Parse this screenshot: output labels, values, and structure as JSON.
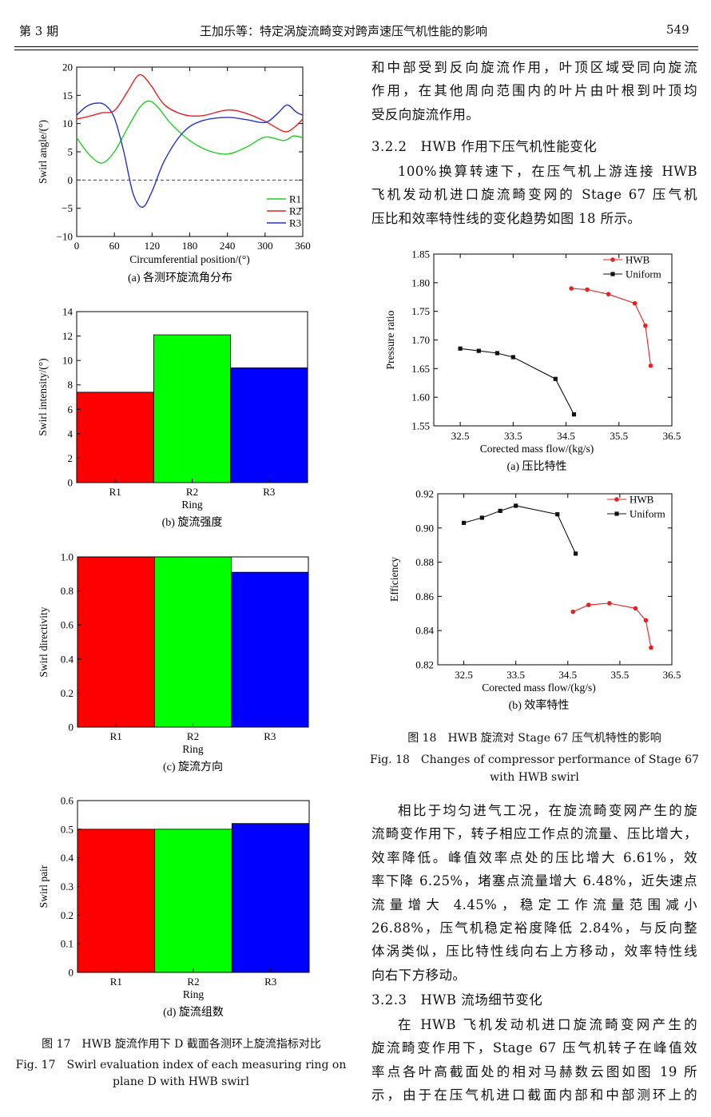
{
  "header": {
    "issue": "第 3 期",
    "title": "王加乐等：特定涡旋流畸变对跨声速压气机性能的影响",
    "page_number": "549"
  },
  "right_column": {
    "para1_lines": [
      "和中部受到反向旋流作用，叶顶区域受同向旋流",
      "作用，在其他周向范围内的叶片由叶根到叶顶均",
      "受反向旋流作用。"
    ],
    "section_322": "3.2.2　HWB 作用下压气机性能变化",
    "para2_lines": [
      "100%换算转速下，在压气机上游连接 HWB",
      "飞机发动机进口旋流畸变网的 Stage 67 压气机",
      "压比和效率特性线的变化趋势如图 18 所示。"
    ],
    "para3_lines": [
      "相比于均匀进气工况，在旋流畸变网产生的旋",
      "流畸变作用下，转子相应工作点的流量、压比增大，",
      "效率降低。峰值效率点处的压比增大 6.61%，效",
      "率下降 6.25%，堵塞点流量增大 6.48%，近失速点",
      "流量增大 4.45%，稳定工作流量范围减小",
      "26.88%，压气机稳定裕度降低 2.84%，与反向整",
      "体涡类似，压比特性线向右上方移动，效率特性线",
      "向右下方移动。"
    ],
    "section_323": "3.2.3　HWB 流场细节变化",
    "para4_lines": [
      "在 HWB 飞机发动机进口旋流畸变网产生的",
      "旋流畸变作用下，Stage 67 压气机转子在峰值效",
      "率点各叶高截面处的相对马赫数云图如图 19 所",
      "示，由于在压气机进口截面内部和中部测环上的"
    ]
  },
  "fig17": {
    "caption_cn": "图 17　HWB 旋流作用下 D 截面各测环上旋流指标对比",
    "caption_en_1": "Fig. 17　Swirl evaluation index of each measuring ring on",
    "caption_en_2": "plane D with HWB swirl"
  },
  "fig18": {
    "caption_cn": "图 18　HWB 旋流对 Stage 67 压气机特性的影响",
    "caption_en_1": "Fig. 18　Changes of compressor performance of Stage 67",
    "caption_en_2": "with HWB swirl"
  },
  "colors": {
    "red": "#ff0000",
    "green": "#00ff00",
    "blue": "#0000ff",
    "line_red": "#e52222",
    "line_green": "#22cc22",
    "line_blue": "#2233cc"
  },
  "chart_data": [
    {
      "id": "fig17a",
      "type": "line",
      "subcaption": "(a) 各测环旋流角分布",
      "xlabel": "Circumferential position/(°)",
      "ylabel": "Swirl angle/(°)",
      "xlim": [
        0,
        360
      ],
      "ylim": [
        -10,
        20
      ],
      "xticks": [
        "0",
        "60",
        "120",
        "180",
        "240",
        "300",
        "360"
      ],
      "yticks": [
        "−10",
        "−5",
        "0",
        "5",
        "10",
        "15",
        "20"
      ],
      "zero_line": "dashed",
      "legend": "bottom-right",
      "series": [
        {
          "name": "R1",
          "color": "#22cc22",
          "x": [
            0,
            20,
            40,
            60,
            80,
            100,
            115,
            130,
            150,
            180,
            210,
            240,
            270,
            300,
            330,
            345,
            360
          ],
          "y": [
            7.5,
            4.5,
            3.0,
            5.0,
            9.0,
            12.8,
            14.0,
            12.8,
            10.0,
            7.0,
            5.2,
            4.6,
            5.8,
            7.6,
            7.0,
            7.8,
            7.5
          ]
        },
        {
          "name": "R2",
          "color": "#e52222",
          "x": [
            0,
            20,
            40,
            60,
            80,
            95,
            105,
            120,
            140,
            170,
            200,
            240,
            270,
            300,
            330,
            345,
            360
          ],
          "y": [
            10.8,
            11.3,
            11.9,
            12.3,
            15.5,
            18.2,
            18.5,
            16.5,
            13.3,
            11.6,
            11.4,
            12.4,
            11.8,
            10.4,
            8.6,
            9.2,
            10.8
          ]
        },
        {
          "name": "R3",
          "color": "#2233cc",
          "x": [
            0,
            15,
            30,
            45,
            60,
            75,
            90,
            105,
            120,
            140,
            170,
            200,
            240,
            270,
            300,
            320,
            335,
            350,
            360
          ],
          "y": [
            11.5,
            13.0,
            13.6,
            13.3,
            11.0,
            5.0,
            -2.5,
            -4.8,
            -2.0,
            3.5,
            8.5,
            10.5,
            11.1,
            10.7,
            10.2,
            11.8,
            13.3,
            12.0,
            11.5
          ]
        }
      ]
    },
    {
      "id": "fig17b",
      "type": "bar",
      "subcaption": "(b) 旋流强度",
      "xlabel": "Ring",
      "ylabel": "Swirl intensity/(°)",
      "ylim": [
        0,
        14
      ],
      "yticks": [
        "0",
        "2",
        "4",
        "6",
        "8",
        "10",
        "12",
        "14"
      ],
      "categories": [
        "R1",
        "R2",
        "R3"
      ],
      "values": [
        7.4,
        12.1,
        9.4
      ],
      "bar_colors": [
        "#ff0000",
        "#00ff00",
        "#0000ff"
      ]
    },
    {
      "id": "fig17c",
      "type": "bar",
      "subcaption": "(c) 旋流方向",
      "xlabel": "Ring",
      "ylabel": "Swirl directivity",
      "ylim": [
        0,
        1.0
      ],
      "yticks": [
        "0",
        "0.2",
        "0.4",
        "0.6",
        "0.8",
        "1.0"
      ],
      "categories": [
        "R1",
        "R2",
        "R3"
      ],
      "values": [
        1.0,
        1.0,
        0.91
      ],
      "bar_colors": [
        "#ff0000",
        "#00ff00",
        "#0000ff"
      ]
    },
    {
      "id": "fig17d",
      "type": "bar",
      "subcaption": "(d) 旋流组数",
      "xlabel": "Ring",
      "ylabel": "Swirl pair",
      "ylim": [
        0,
        0.6
      ],
      "yticks": [
        "0",
        "0.1",
        "0.2",
        "0.3",
        "0.4",
        "0.5",
        "0.6"
      ],
      "categories": [
        "R1",
        "R2",
        "R3"
      ],
      "values": [
        0.5,
        0.5,
        0.52
      ],
      "bar_colors": [
        "#ff0000",
        "#00ff00",
        "#0000ff"
      ]
    },
    {
      "id": "fig18a",
      "type": "line",
      "subcaption": "(a) 压比特性",
      "xlabel": "Corected mass flow/(kg/s)",
      "ylabel": "Pressure ratio",
      "xlim": [
        32.0,
        36.5
      ],
      "ylim": [
        1.55,
        1.85
      ],
      "xticks": [
        "32.5",
        "33.5",
        "34.5",
        "35.5",
        "36.5"
      ],
      "yticks": [
        "1.55",
        "1.60",
        "1.65",
        "1.70",
        "1.75",
        "1.80",
        "1.85"
      ],
      "legend": "top-right",
      "series": [
        {
          "name": "HWB",
          "color": "#e52222",
          "marker": "circle",
          "x": [
            34.6,
            34.9,
            35.3,
            35.8,
            36.0,
            36.1
          ],
          "y": [
            1.79,
            1.788,
            1.78,
            1.764,
            1.725,
            1.655
          ]
        },
        {
          "name": "Uniform",
          "color": "#111111",
          "marker": "square",
          "x": [
            32.5,
            32.85,
            33.2,
            33.5,
            34.3,
            34.65
          ],
          "y": [
            1.685,
            1.681,
            1.677,
            1.67,
            1.632,
            1.57
          ]
        }
      ]
    },
    {
      "id": "fig18b",
      "type": "line",
      "subcaption": "(b) 效率特性",
      "xlabel": "Corected mass flow/(kg/s)",
      "ylabel": "Efficiency",
      "xlim": [
        32.0,
        36.5
      ],
      "ylim": [
        0.82,
        0.92
      ],
      "xticks": [
        "32.5",
        "33.5",
        "34.5",
        "35.5",
        "36.5"
      ],
      "yticks": [
        "0.82",
        "0.84",
        "0.86",
        "0.88",
        "0.90",
        "0.92"
      ],
      "legend": "top-right",
      "series": [
        {
          "name": "HWB",
          "color": "#e52222",
          "marker": "circle",
          "x": [
            34.6,
            34.9,
            35.3,
            35.8,
            36.0,
            36.1
          ],
          "y": [
            0.851,
            0.855,
            0.856,
            0.853,
            0.846,
            0.83
          ]
        },
        {
          "name": "Uniform",
          "color": "#111111",
          "marker": "square",
          "x": [
            32.5,
            32.85,
            33.2,
            33.5,
            34.3,
            34.65
          ],
          "y": [
            0.903,
            0.906,
            0.91,
            0.913,
            0.908,
            0.885
          ]
        }
      ]
    }
  ]
}
